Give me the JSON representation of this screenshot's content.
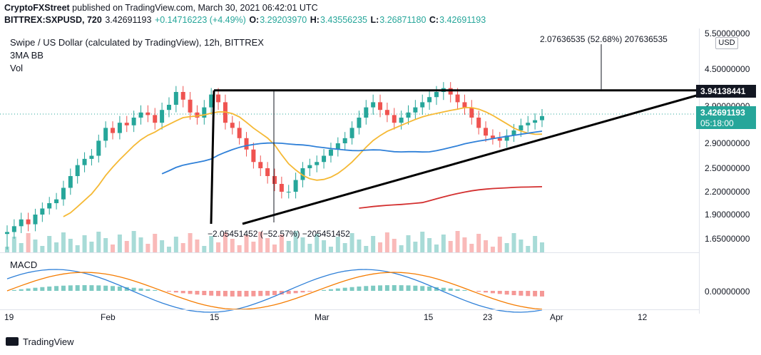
{
  "header": {
    "publisher": "CryptoFXStreet",
    "published_text": "published on TradingView.com, March 30, 2021 06:42:01 UTC",
    "symbol": "BITTREX:SXPUSD, 720",
    "last": "3.42691193",
    "change": "+0.14716223 (+4.49%)",
    "o_label": "O:",
    "o": "3.29203970",
    "h_label": "H:",
    "h": "3.43556235",
    "l_label": "L:",
    "l": "3.26871180",
    "c_label": "C:",
    "c": "3.42691193"
  },
  "legend": {
    "title": "Swipe / US Dollar (calculated by TradingView), 12h, BITTREX",
    "indicator1": "3MA BB",
    "indicator2": "Vol",
    "macd": "MACD"
  },
  "price_axis": {
    "currency": "USD",
    "ticks": [
      "5.50000000",
      "4.50000000",
      "3.90000000",
      "2.90000000",
      "2.50000000",
      "2.20000000",
      "1.90000000",
      "1.65000000"
    ],
    "macd_tick": "0.00000000",
    "resistance_tag": "3.94138441",
    "last_tag": "3.42691193",
    "countdown": "05:18:00"
  },
  "time_axis": {
    "ticks": [
      "19",
      "Feb",
      "15",
      "Mar",
      "15",
      "23",
      "Apr",
      "12"
    ]
  },
  "annotations": {
    "target": "2.07636535 (52.68%) 207636535",
    "drop": "−2.05451452 (−52.57%) −205451452"
  },
  "colors": {
    "up": "#26a69a",
    "down": "#ef5350",
    "ma_yellow": "#f5b935",
    "ma_blue": "#2f80d8",
    "ma_red": "#d32f2f",
    "macd_line": "#2f80d8",
    "signal_line": "#f57c00"
  },
  "footer": {
    "brand": "TradingView"
  },
  "chart_data": {
    "type": "candlestick",
    "title": "Swipe / US Dollar (calculated by TradingView), 12h, BITTREX",
    "price_range": [
      1.55,
      5.6
    ],
    "x_labels": [
      "19",
      "Feb",
      "15",
      "Mar",
      "15",
      "23",
      "Apr",
      "12"
    ],
    "closes": [
      1.72,
      1.78,
      1.85,
      1.8,
      1.9,
      1.98,
      2.05,
      2.1,
      2.25,
      2.4,
      2.55,
      2.65,
      2.7,
      2.95,
      3.2,
      3.1,
      3.3,
      3.25,
      3.4,
      3.5,
      3.45,
      3.3,
      3.55,
      3.65,
      3.9,
      3.75,
      3.5,
      3.4,
      3.6,
      3.85,
      3.7,
      3.3,
      3.2,
      3.0,
      2.8,
      2.6,
      2.5,
      2.4,
      2.3,
      2.2,
      2.2,
      2.35,
      2.5,
      2.55,
      2.6,
      2.7,
      2.8,
      2.9,
      3.0,
      3.2,
      3.4,
      3.6,
      3.7,
      3.55,
      3.45,
      3.3,
      3.4,
      3.5,
      3.6,
      3.7,
      3.8,
      3.9,
      4.0,
      3.85,
      3.7,
      3.6,
      3.4,
      3.2,
      3.05,
      3.0,
      2.95,
      3.05,
      3.15,
      3.25,
      3.3,
      3.35,
      3.43
    ],
    "overlays": [
      {
        "name": "3MA BB",
        "color": "#f5b935"
      },
      {
        "name": "3MA BB",
        "color": "#2f80d8"
      },
      {
        "name": "3MA BB",
        "color": "#d32f2f"
      }
    ],
    "resistance": 3.94138441,
    "macd_zero": 0.0
  }
}
